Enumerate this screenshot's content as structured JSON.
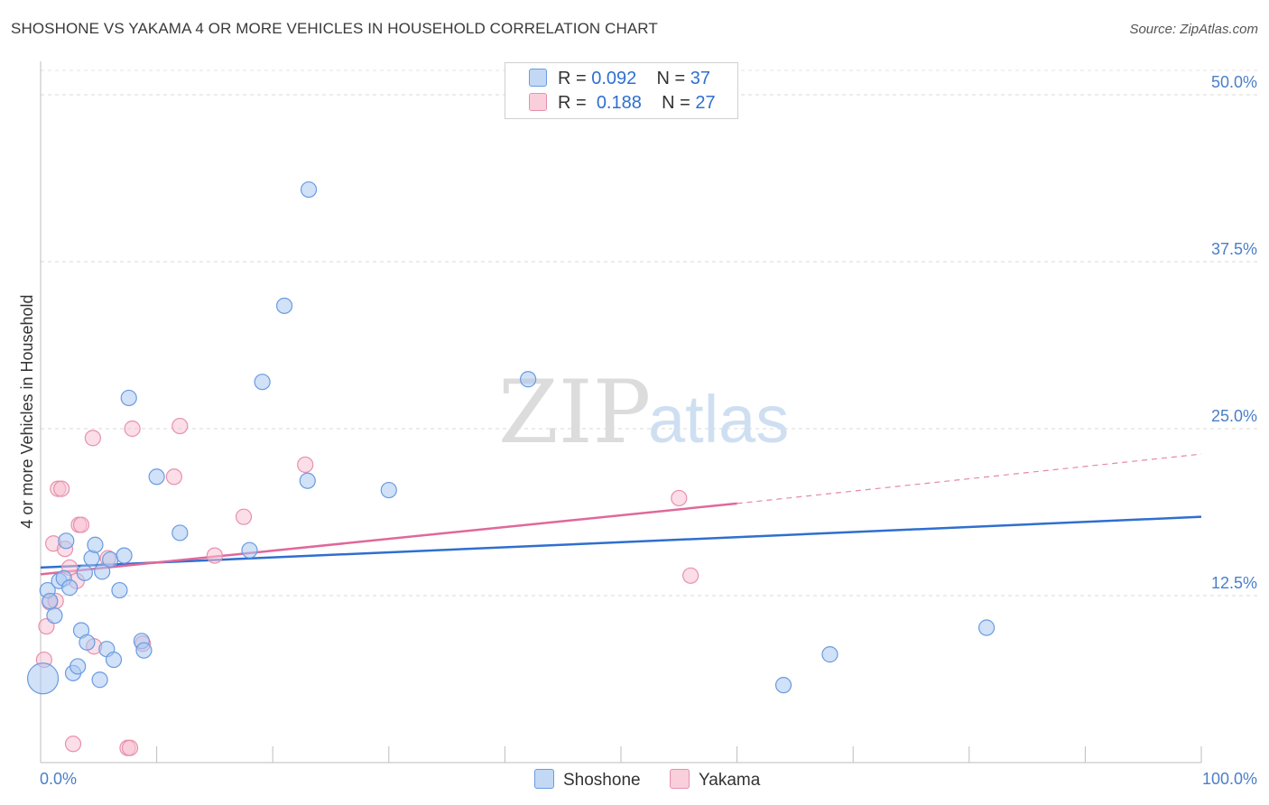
{
  "title": "SHOSHONE VS YAKAMA 4 OR MORE VEHICLES IN HOUSEHOLD CORRELATION CHART",
  "source": "Source: ZipAtlas.com",
  "watermark": {
    "zip": "ZIP",
    "atlas": "atlas"
  },
  "legend": {
    "rows": [
      {
        "r_label": "R =",
        "r_value": "0.092",
        "n_label": "N =",
        "n_value": "37"
      },
      {
        "r_label": "R =",
        "r_value": "0.188",
        "n_label": "N =",
        "n_value": "27"
      }
    ]
  },
  "colors": {
    "shoshone_fill": "#a9c9f2",
    "shoshone_stroke": "#6a9be0",
    "shoshone_line": "#2f6fcf",
    "yakama_fill": "#f8c3d3",
    "yakama_stroke": "#e890ac",
    "yakama_line": "#e0689a",
    "axis_tick_text": "#4a7fc8"
  },
  "chart_data": {
    "type": "scatter",
    "title": "SHOSHONE VS YAKAMA 4 OR MORE VEHICLES IN HOUSEHOLD CORRELATION CHART",
    "xlabel": "",
    "ylabel": "4 or more Vehicles in Household",
    "xlim": [
      0,
      100
    ],
    "ylim": [
      0,
      52.5
    ],
    "x_tick_labels": [
      "0.0%",
      "100.0%"
    ],
    "y_ticks": [
      12.5,
      25.0,
      37.5,
      50.0
    ],
    "y_tick_labels": [
      "12.5%",
      "25.0%",
      "37.5%",
      "50.0%"
    ],
    "grid": true,
    "series": [
      {
        "name": "Shoshone",
        "r": 0.092,
        "n": 37,
        "trend": {
          "x0": 0,
          "y0": 14.6,
          "x1": 100,
          "y1": 18.4
        },
        "points": [
          {
            "x": 0.2,
            "y": 6.3,
            "big": true
          },
          {
            "x": 0.6,
            "y": 12.9
          },
          {
            "x": 0.8,
            "y": 12.1
          },
          {
            "x": 1.2,
            "y": 11.0
          },
          {
            "x": 1.6,
            "y": 13.6
          },
          {
            "x": 2.0,
            "y": 13.8
          },
          {
            "x": 2.2,
            "y": 16.6
          },
          {
            "x": 2.5,
            "y": 13.1
          },
          {
            "x": 2.8,
            "y": 6.7
          },
          {
            "x": 3.2,
            "y": 7.2
          },
          {
            "x": 3.5,
            "y": 9.9
          },
          {
            "x": 3.8,
            "y": 14.2
          },
          {
            "x": 4.0,
            "y": 9.0
          },
          {
            "x": 4.4,
            "y": 15.3
          },
          {
            "x": 4.7,
            "y": 16.3
          },
          {
            "x": 5.1,
            "y": 6.2
          },
          {
            "x": 5.3,
            "y": 14.3
          },
          {
            "x": 5.7,
            "y": 8.5
          },
          {
            "x": 6.0,
            "y": 15.2
          },
          {
            "x": 6.3,
            "y": 7.7
          },
          {
            "x": 6.8,
            "y": 12.9
          },
          {
            "x": 7.2,
            "y": 15.5
          },
          {
            "x": 7.6,
            "y": 27.3
          },
          {
            "x": 8.7,
            "y": 9.1
          },
          {
            "x": 8.9,
            "y": 8.4
          },
          {
            "x": 10.0,
            "y": 21.4
          },
          {
            "x": 12.0,
            "y": 17.2
          },
          {
            "x": 18.0,
            "y": 15.9
          },
          {
            "x": 19.1,
            "y": 28.5
          },
          {
            "x": 21.0,
            "y": 34.2
          },
          {
            "x": 23.0,
            "y": 21.1
          },
          {
            "x": 23.1,
            "y": 42.9
          },
          {
            "x": 30.0,
            "y": 20.4
          },
          {
            "x": 42.0,
            "y": 28.7
          },
          {
            "x": 64.0,
            "y": 5.8
          },
          {
            "x": 68.0,
            "y": 8.1
          },
          {
            "x": 81.5,
            "y": 10.1
          }
        ]
      },
      {
        "name": "Yakama",
        "r": 0.188,
        "n": 27,
        "trend": {
          "x0": 0,
          "y0": 14.1,
          "x1": 60,
          "y1": 19.4,
          "dashed_x1": 100,
          "dashed_y1": 23.1
        },
        "points": [
          {
            "x": 0.3,
            "y": 7.7
          },
          {
            "x": 0.5,
            "y": 10.2
          },
          {
            "x": 0.8,
            "y": 12.0
          },
          {
            "x": 1.1,
            "y": 16.4
          },
          {
            "x": 1.3,
            "y": 12.1
          },
          {
            "x": 1.5,
            "y": 20.5
          },
          {
            "x": 1.8,
            "y": 20.5
          },
          {
            "x": 2.1,
            "y": 16.0
          },
          {
            "x": 2.5,
            "y": 14.6
          },
          {
            "x": 2.8,
            "y": 1.4
          },
          {
            "x": 3.1,
            "y": 13.6
          },
          {
            "x": 3.3,
            "y": 17.8
          },
          {
            "x": 3.5,
            "y": 17.8
          },
          {
            "x": 4.5,
            "y": 24.3
          },
          {
            "x": 4.6,
            "y": 8.7
          },
          {
            "x": 5.8,
            "y": 15.3
          },
          {
            "x": 7.5,
            "y": 1.1
          },
          {
            "x": 7.7,
            "y": 1.1
          },
          {
            "x": 7.9,
            "y": 25.0
          },
          {
            "x": 8.8,
            "y": 8.9
          },
          {
            "x": 11.5,
            "y": 21.4
          },
          {
            "x": 12.0,
            "y": 25.2
          },
          {
            "x": 15.0,
            "y": 15.5
          },
          {
            "x": 17.5,
            "y": 18.4
          },
          {
            "x": 22.8,
            "y": 22.3
          },
          {
            "x": 55.0,
            "y": 19.8
          },
          {
            "x": 56.0,
            "y": 14.0
          }
        ]
      }
    ]
  }
}
